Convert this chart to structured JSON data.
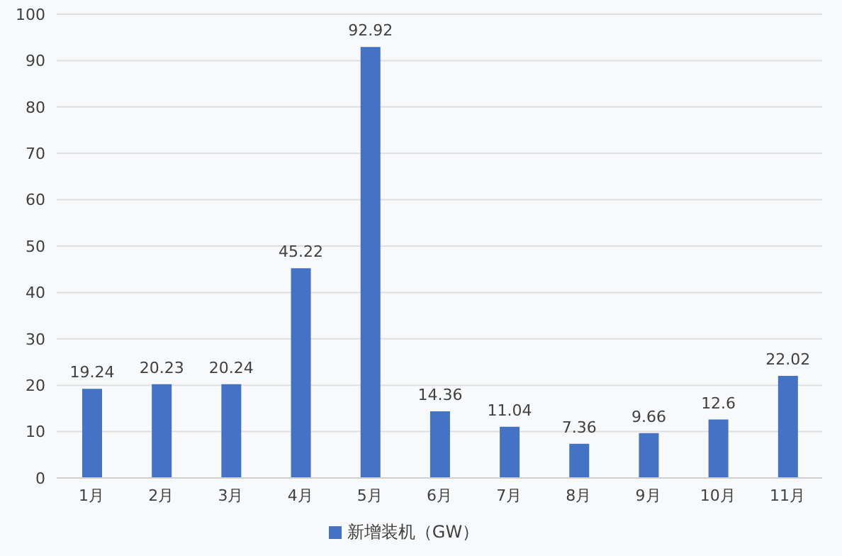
{
  "chart_data": {
    "type": "bar",
    "categories": [
      "1月",
      "2月",
      "3月",
      "4月",
      "5月",
      "6月",
      "7月",
      "8月",
      "9月",
      "10月",
      "11月"
    ],
    "series": [
      {
        "name": "新增装机（GW）",
        "color": "#4472c4",
        "values": [
          19.24,
          20.23,
          20.24,
          45.22,
          92.92,
          14.36,
          11.04,
          7.36,
          9.66,
          12.6,
          22.02
        ]
      }
    ],
    "ylim": [
      0,
      100
    ],
    "yticks": [
      0,
      10,
      20,
      30,
      40,
      50,
      60,
      70,
      80,
      90,
      100
    ],
    "grid": "y",
    "legend": "bottom",
    "data_labels": true
  }
}
